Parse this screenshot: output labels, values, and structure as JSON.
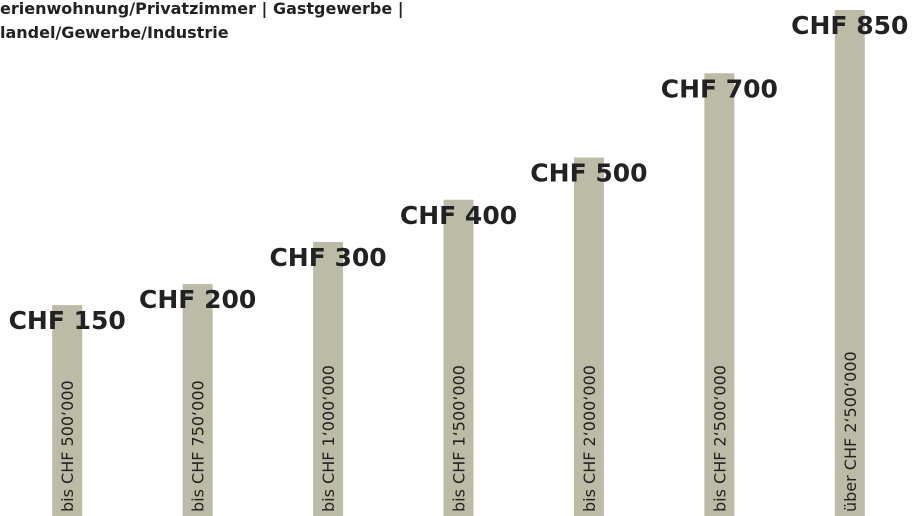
{
  "chart_data": {
    "type": "bar",
    "title": [
      "erienwohnung/Privatzimmer | Gastgewerbe |",
      "landel/Gewerbe/Industrie"
    ],
    "categories": [
      "bis CHF 500‘000",
      "bis CHF 750‘000",
      "bis CHF 1‘000‘000",
      "bis CHF 1‘500‘000",
      "bis CHF 2‘000‘000",
      "bis CHF 2‘500‘000",
      "über CHF 2‘500‘000"
    ],
    "values": [
      150,
      200,
      300,
      400,
      500,
      700,
      850
    ],
    "value_labels": [
      "CHF 150",
      "CHF 200",
      "CHF 300",
      "CHF 400",
      "CHF 500",
      "CHF 700",
      "CHF 850"
    ],
    "color": "#bcbba6",
    "ylim": [
      -350,
      850
    ]
  }
}
